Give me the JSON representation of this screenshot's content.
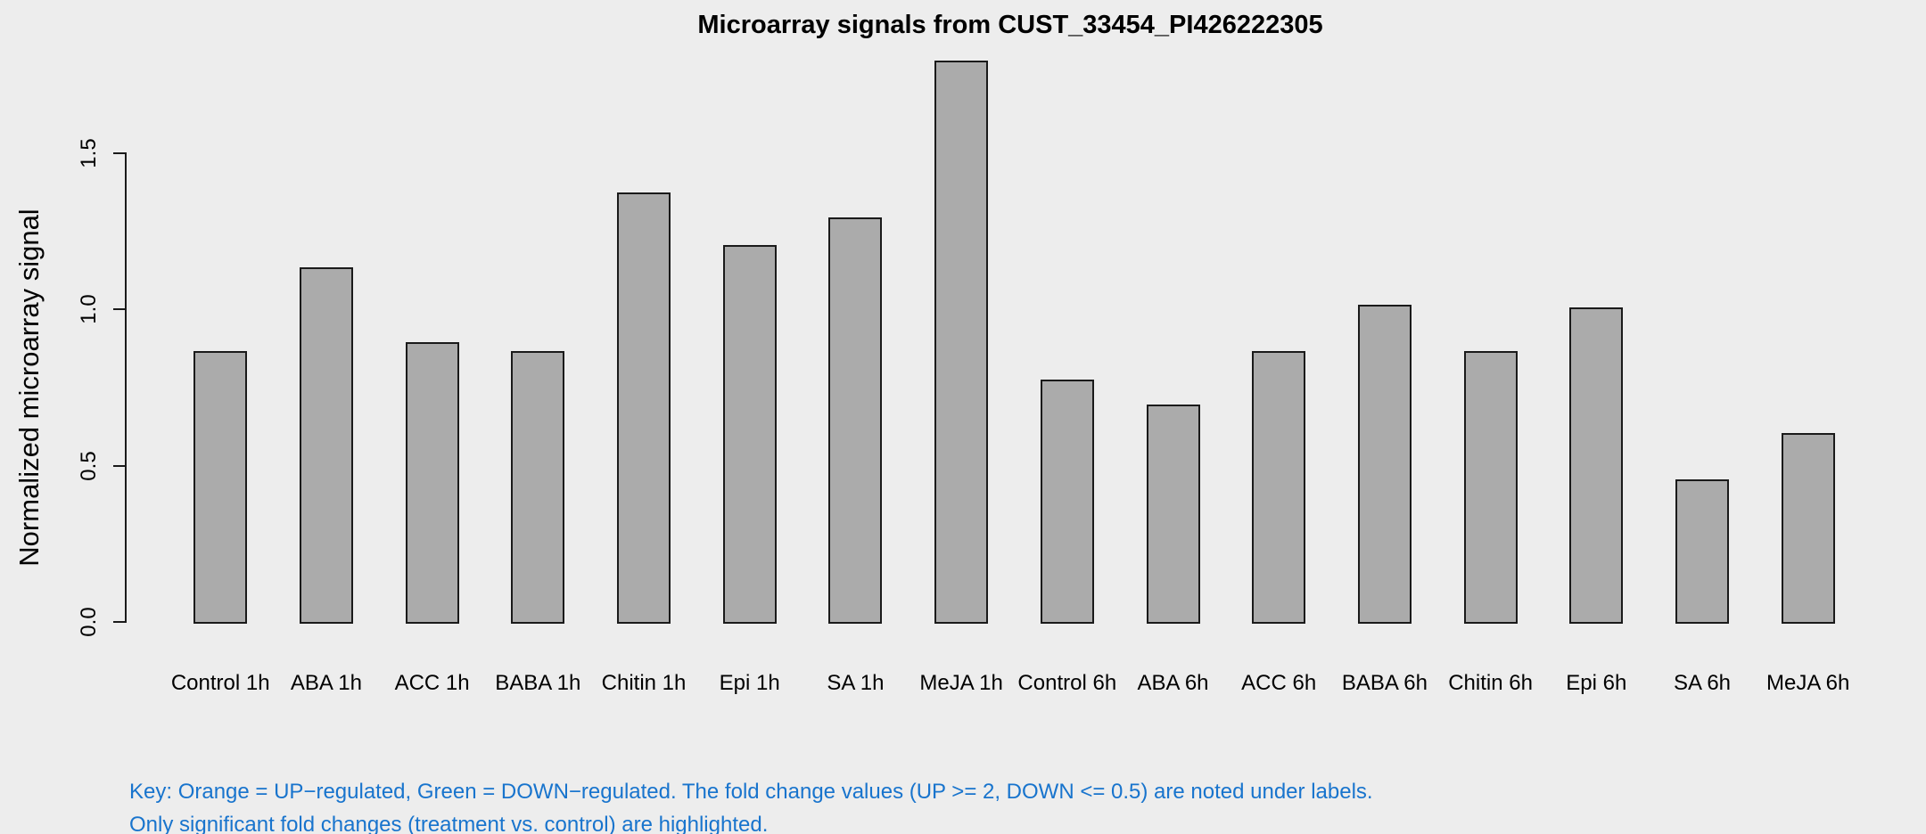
{
  "chart_data": {
    "type": "bar",
    "title": "Microarray signals from CUST_33454_PI426222305",
    "xlabel": "",
    "ylabel": "Normalized microarray signal",
    "categories": [
      "Control 1h",
      "ABA 1h",
      "ACC 1h",
      "BABA 1h",
      "Chitin 1h",
      "Epi 1h",
      "SA 1h",
      "MeJA 1h",
      "Control 6h",
      "ABA 6h",
      "ACC 6h",
      "BABA 6h",
      "Chitin 6h",
      "Epi 6h",
      "SA 6h",
      "MeJA 6h"
    ],
    "values": [
      0.86,
      1.13,
      0.89,
      0.86,
      1.37,
      1.2,
      1.29,
      1.79,
      0.77,
      0.69,
      0.86,
      1.01,
      0.86,
      1.0,
      0.45,
      0.6
    ],
    "ylim": [
      0,
      1.79
    ],
    "yticks": [
      0.0,
      0.5,
      1.0,
      1.5
    ],
    "ytick_labels": [
      "0.0",
      "0.5",
      "1.0",
      "1.5"
    ],
    "grid": false,
    "legend": "none",
    "bar_fill": "#ABABAB",
    "bar_border": "#1A1A1A"
  },
  "annotations": {
    "key_line1": "Key: Orange = UP−regulated, Green = DOWN−regulated. The fold change values (UP >= 2, DOWN <= 0.5) are noted under labels.",
    "key_line2": "Only significant fold changes (treatment vs. control) are highlighted.",
    "key_color": "#1874CD"
  },
  "colors": {
    "background": "#EDEDED",
    "axis": "#1A1A1A",
    "text": "#000000"
  }
}
